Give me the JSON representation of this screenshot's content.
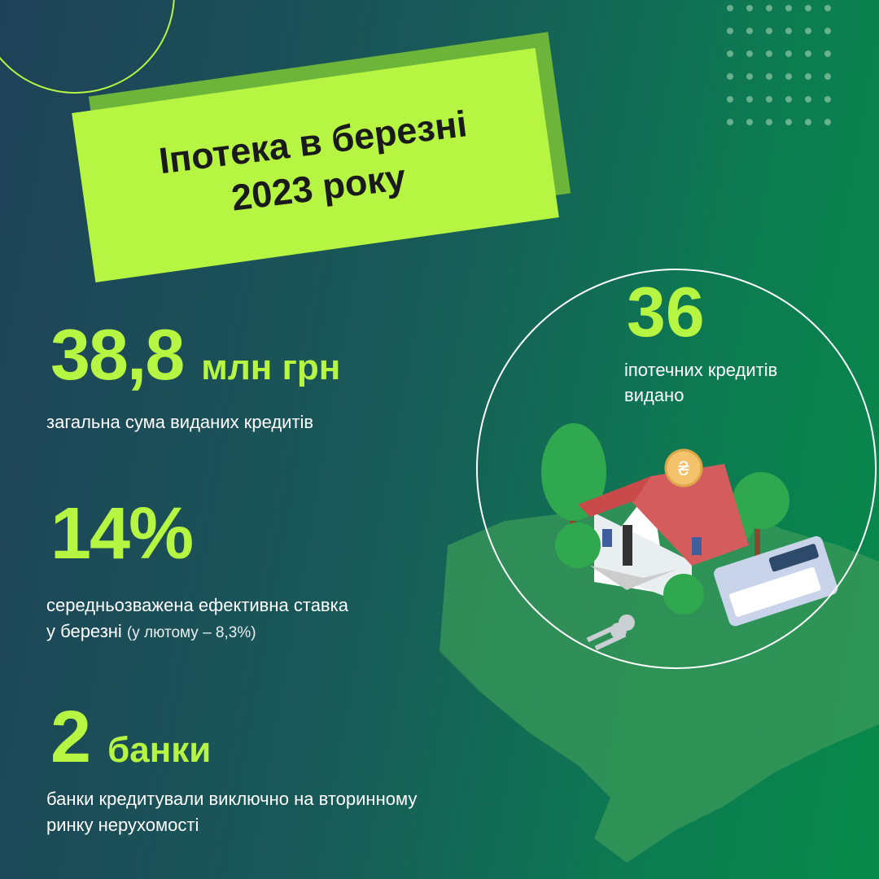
{
  "title": "Іпотека в березні 2023 року",
  "colors": {
    "accent": "#b6f542",
    "bg_start": "#1f4158",
    "bg_end": "#078a4a"
  },
  "stats": [
    {
      "value": "38,8",
      "unit": "млн грн",
      "description": "загальна сума виданих кредитів"
    },
    {
      "value": "14%",
      "description_bold": "середньозважена ефективна ставка",
      "description_bold2": "у березні",
      "description_note": "(у лютому – 8,3%)"
    },
    {
      "value": "2",
      "unit": "банки",
      "description_line1": "банки кредитували виключно на вторинному",
      "description_line2": "ринку нерухомості"
    }
  ],
  "loans": {
    "value": "36",
    "line1": "іпотечних кредитів",
    "line2": "видано"
  },
  "illustration": {
    "icons": [
      "house-icon",
      "coin-icon",
      "calculator-icon",
      "keys-icon",
      "tree-icon",
      "ukraine-map"
    ],
    "coin_symbol": "₴"
  }
}
